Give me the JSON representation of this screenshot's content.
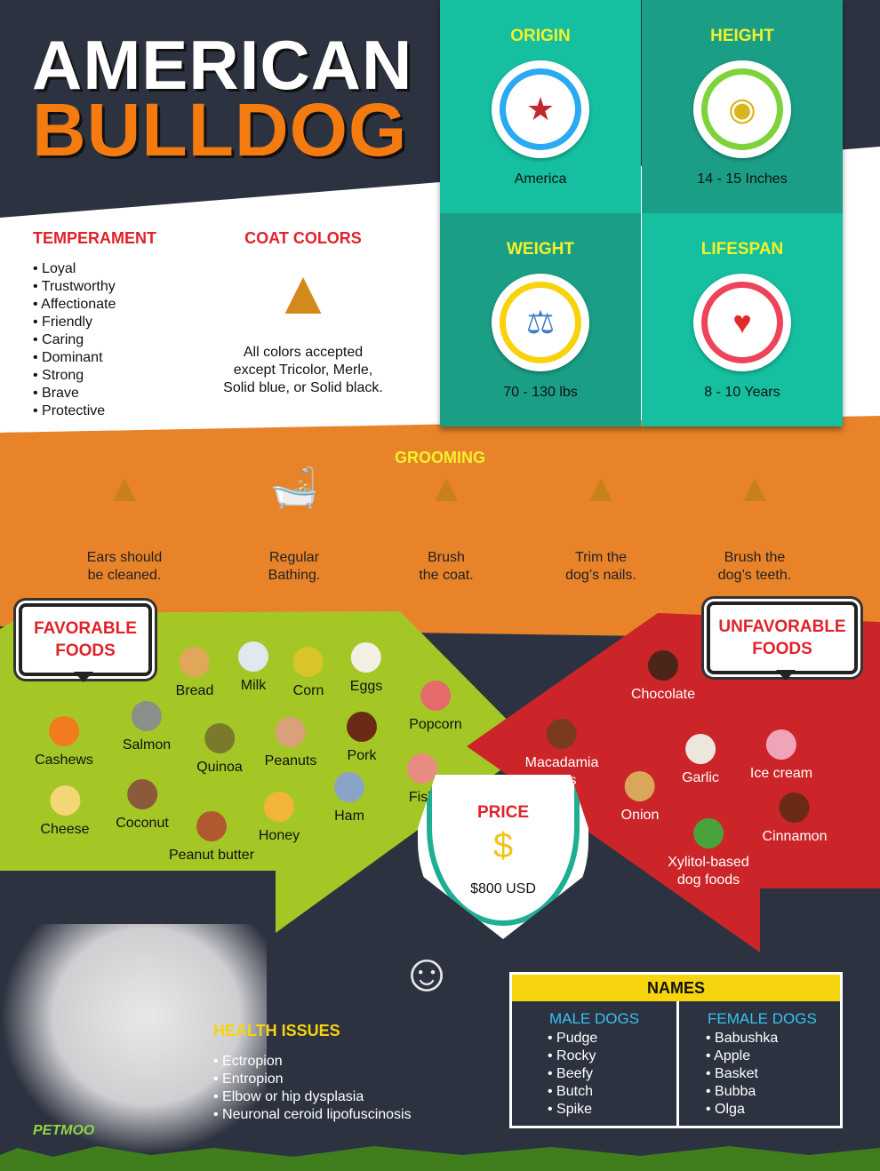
{
  "title": {
    "line1": "AMERICAN",
    "line2": "BULLDOG"
  },
  "stats": [
    {
      "label": "ORIGIN",
      "value": "America",
      "icon": "us-map-flag-icon",
      "ring": "#29aaf2"
    },
    {
      "label": "HEIGHT",
      "value": "14 - 15 Inches",
      "icon": "tape-measure-icon",
      "ring": "#7ed23a"
    },
    {
      "label": "WEIGHT",
      "value": "70 - 130 lbs",
      "icon": "scale-icon",
      "ring": "#f8d20c"
    },
    {
      "label": "LIFESPAN",
      "value": "8 - 10 Years",
      "icon": "heartbeat-icon",
      "ring": "#ee4459"
    }
  ],
  "temperament": {
    "heading": "TEMPERAMENT",
    "items": [
      "Loyal",
      "Trustworthy",
      "Affectionate",
      "Friendly",
      "Caring",
      "Dominant",
      "Strong",
      "Brave",
      "Protective"
    ]
  },
  "coat": {
    "heading": "COAT COLORS",
    "line1": "All colors accepted",
    "line2": "except Tricolor, Merle,",
    "line3": "Solid blue, or Solid black."
  },
  "grooming": {
    "heading": "GROOMING",
    "items": [
      {
        "l1": "Ears should",
        "l2": "be cleaned."
      },
      {
        "l1": "Regular",
        "l2": "Bathing."
      },
      {
        "l1": "Brush",
        "l2": "the coat."
      },
      {
        "l1": "Trim the",
        "l2": "dog’s nails."
      },
      {
        "l1": "Brush the",
        "l2": "dog’s teeth."
      }
    ]
  },
  "favorable": {
    "l1": "FAVORABLE",
    "l2": "FOODS",
    "items": [
      "Bread",
      "Milk",
      "Corn",
      "Eggs",
      "Popcorn",
      "Cashews",
      "Salmon",
      "Quinoa",
      "Peanuts",
      "Pork",
      "Fish",
      "Cheese",
      "Coconut",
      "Peanut butter",
      "Honey",
      "Ham"
    ]
  },
  "unfavorable": {
    "l1": "UNFAVORABLE",
    "l2": "FOODS",
    "items": [
      "Chocolate",
      "Macadamia\nNuts",
      "Garlic",
      "Ice cream",
      "Onion",
      "Cinnamon",
      "Xylitol-based\ndog foods"
    ]
  },
  "price": {
    "heading": "PRICE",
    "value": "$800 USD"
  },
  "health": {
    "heading": "HEALTH ISSUES",
    "items": [
      "Ectropion",
      "Entropion",
      "Elbow or hip dysplasia",
      "Neuronal ceroid lipofuscinosis"
    ]
  },
  "names": {
    "heading": "NAMES",
    "male": {
      "heading": "MALE DOGS",
      "items": [
        "Pudge",
        "Rocky",
        "Beefy",
        "Butch",
        "Spike"
      ]
    },
    "female": {
      "heading": "FEMALE DOGS",
      "items": [
        "Babushka",
        "Apple",
        "Basket",
        "Bubba",
        "Olga"
      ]
    }
  },
  "logo": "PETMOO",
  "colors": {
    "dark": "#2d3240",
    "teal": "#15bfa0",
    "orange": "#e8832a",
    "green": "#a5c726",
    "red": "#cc2529",
    "yellow": "#f2f22a"
  }
}
